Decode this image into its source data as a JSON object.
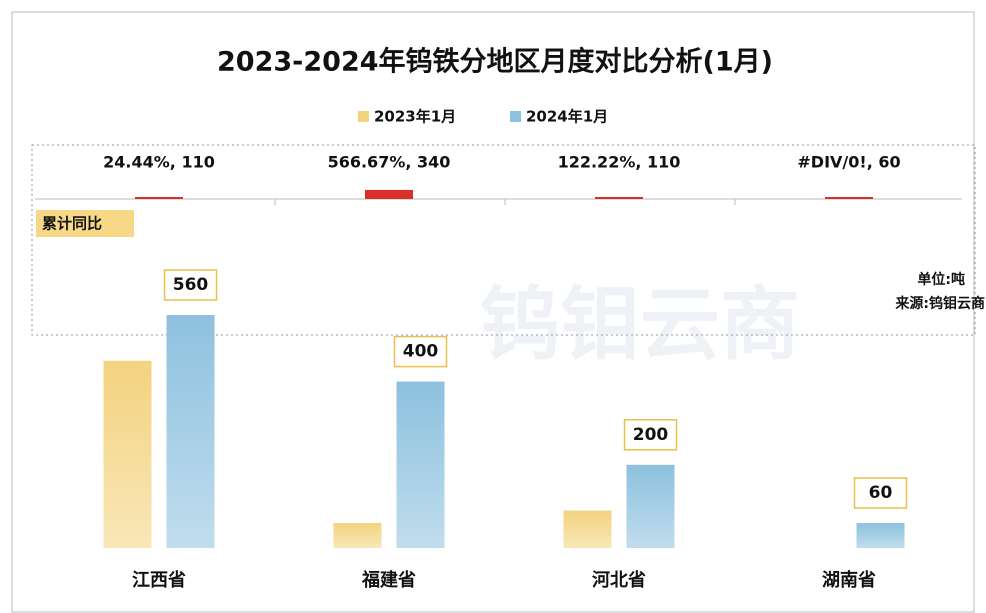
{
  "chart_data": {
    "type": "bar",
    "title": "2023-2024年钨铁分地区月度对比分析(1月)",
    "categories": [
      "江西省",
      "福建省",
      "河北省",
      "湖南省"
    ],
    "series": [
      {
        "name": "2023年1月",
        "color": "#f3d37e",
        "values": [
          450,
          60,
          90,
          0
        ]
      },
      {
        "name": "2024年1月",
        "color": "#8dc1df",
        "values": [
          560,
          400,
          200,
          60
        ]
      }
    ],
    "ylim": [
      0,
      1000
    ],
    "growth_panel": {
      "label": "累计同比",
      "color": "#d9302a",
      "values": [
        24.44,
        566.67,
        122.22,
        null
      ],
      "value_labels": [
        "24.44%, 110",
        "566.67%, 340",
        "122.22%, 110",
        "#DIV/0!, 60"
      ]
    },
    "unit": "单位:吨",
    "source": "来源:钨钼云商",
    "watermark": "钨钼云商"
  }
}
